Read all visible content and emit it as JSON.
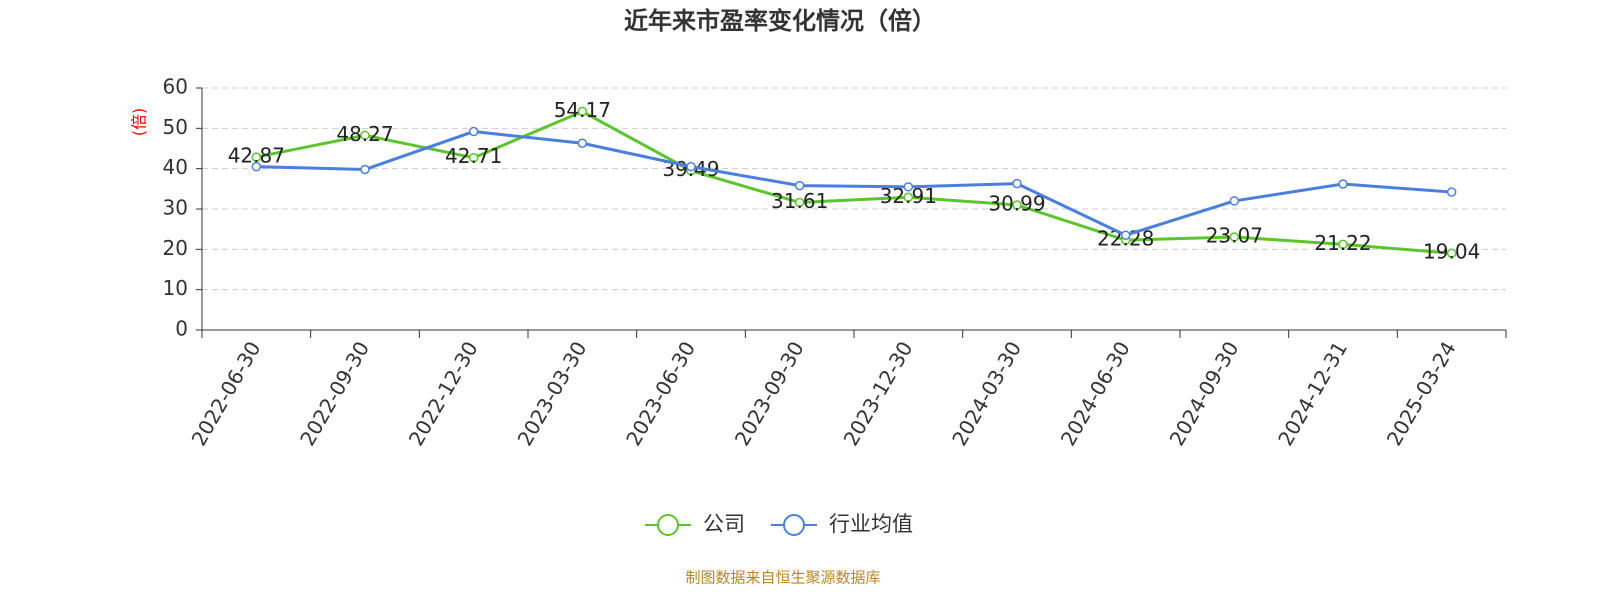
{
  "chart_data": {
    "type": "line",
    "title": "近年来市盈率变化情况（倍）",
    "y_label": "(倍)",
    "categories": [
      "2022-06-30",
      "2022-09-30",
      "2022-12-30",
      "2023-03-30",
      "2023-06-30",
      "2023-09-30",
      "2023-12-30",
      "2024-03-30",
      "2024-06-30",
      "2024-09-30",
      "2024-12-31",
      "2025-03-24"
    ],
    "series": [
      {
        "name": "公司",
        "color": "#5cc42c",
        "values": [
          42.87,
          48.27,
          42.71,
          54.17,
          39.49,
          31.61,
          32.91,
          30.99,
          22.28,
          23.07,
          21.22,
          19.04
        ],
        "show_labels": true
      },
      {
        "name": "行业均值",
        "color": "#4a7fdc",
        "values": [
          40.5,
          39.8,
          49.2,
          46.3,
          40.5,
          35.8,
          35.5,
          36.3,
          23.5,
          32.0,
          36.2,
          34.2
        ],
        "show_labels": false
      }
    ],
    "ylim": [
      0,
      60
    ],
    "yticks": [
      0,
      10,
      20,
      30,
      40,
      50,
      60
    ],
    "grid": true,
    "source": "制图数据来自恒生聚源数据库"
  }
}
